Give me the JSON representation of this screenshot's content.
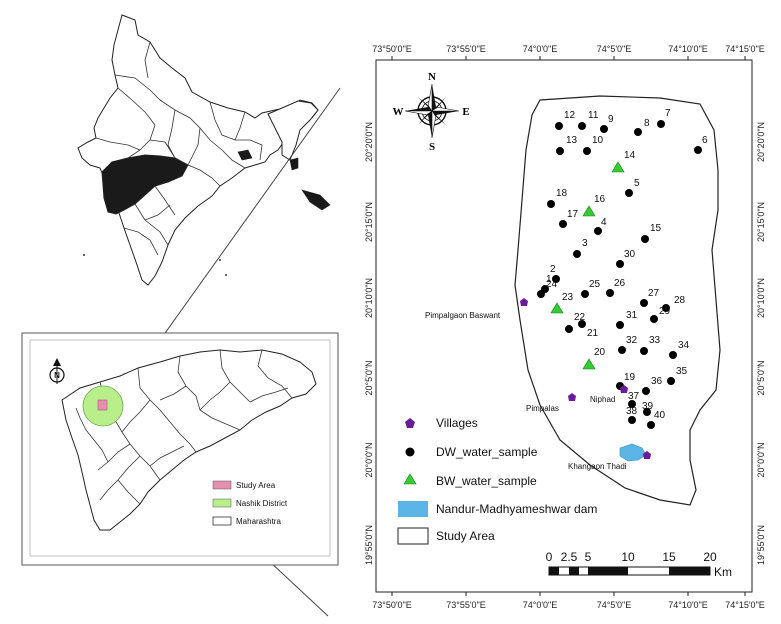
{
  "main_map": {
    "top_ticks": [
      "73°50'0\"E",
      "73°55'0\"E",
      "74°0'0\"E",
      "74°5'0\"E",
      "74°10'0\"E",
      "74°15'0\"E"
    ],
    "bottom_ticks": [
      "73°50'0\"E",
      "73°55'0\"E",
      "74°0'0\"E",
      "74°5'0\"E",
      "74°10'0\"E",
      "74°15'0\"E"
    ],
    "left_ticks": [
      "20°20'0\"N",
      "20°15'0\"N",
      "20°10'0\"N",
      "20°5'0\"N",
      "20°0'0\"N",
      "19°55'0\"N"
    ],
    "right_ticks": [
      "20°20'0\"N",
      "20°15'0\"N",
      "20°10'0\"N",
      "20°5'0\"N",
      "20°0'0\"N",
      "19°55'0\"N"
    ],
    "north_labels": {
      "n": "N",
      "s": "S",
      "e": "E",
      "w": "W"
    },
    "villages": [
      {
        "name": "Pimpalgaon Baswant"
      },
      {
        "name": "Pimpalas"
      },
      {
        "name": "Niphad"
      },
      {
        "name": "Khangaon Thadi"
      }
    ],
    "dw_samples": [
      "1",
      "2",
      "3",
      "4",
      "5",
      "6",
      "7",
      "8",
      "9",
      "10",
      "11",
      "12",
      "13",
      "15",
      "17",
      "18",
      "19",
      "21",
      "22",
      "24",
      "25",
      "26",
      "27",
      "28",
      "29",
      "30",
      "31",
      "32",
      "33",
      "34",
      "35",
      "36",
      "37",
      "38",
      "39",
      "40"
    ],
    "bw_samples": [
      "14",
      "16",
      "20",
      "23"
    ],
    "legend": {
      "villages": "Villages",
      "dw": "DW_water_sample",
      "bw": "BW_water_sample",
      "dam": "Nandur-Madhyameshwar dam",
      "study": "Study Area"
    },
    "scalebar": {
      "labels": [
        "0",
        "2.5",
        "5",
        "10",
        "15",
        "20"
      ],
      "unit": "Km"
    },
    "colors": {
      "village": "#6a1b9a",
      "dw": "#000000",
      "bw": "#33cc33",
      "dam": "#5ab4e6"
    }
  },
  "inset_maharashtra": {
    "north_label": "N",
    "legend": {
      "study": "Study Area",
      "district": "Nashik District",
      "state": "Maharashtra"
    },
    "colors": {
      "study": "#e58fb0",
      "district": "#b8ef8a",
      "state": "#ffffff"
    }
  },
  "inset_india": {
    "highlight_color": "#1a1a1a"
  }
}
